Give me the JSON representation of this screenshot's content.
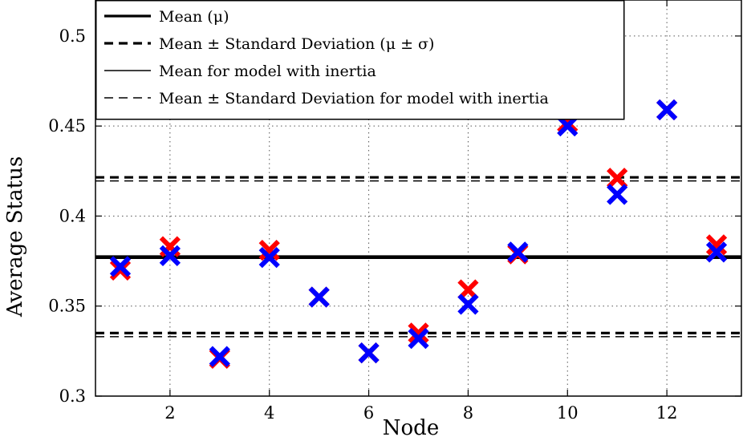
{
  "chart_data": {
    "type": "scatter",
    "xlabel": "Node",
    "ylabel": "Average Status",
    "xlim": [
      0.5,
      13.5
    ],
    "ylim": [
      0.3,
      0.52
    ],
    "xticks": [
      2,
      4,
      6,
      8,
      10,
      12
    ],
    "yticks": [
      0.3,
      0.35,
      0.4,
      0.45,
      0.5
    ],
    "ytick_labels": [
      "0.3",
      "0.35",
      "0.4",
      "0.45",
      "0.5"
    ],
    "grid": true,
    "legend_position": "top-left",
    "legend": [
      {
        "label": "Mean (μ)",
        "style": "thick-solid"
      },
      {
        "label": "Mean ± Standard Deviation (μ ± σ)",
        "style": "thick-dashed"
      },
      {
        "label": "Mean for model with inertia",
        "style": "thin-solid"
      },
      {
        "label": "Mean ± Standard Deviation for model with inertia",
        "style": "thin-dashed"
      }
    ],
    "series": [
      {
        "color": "#ff0000",
        "marker": "x",
        "x": [
          1,
          2,
          3,
          4,
          5,
          6,
          7,
          8,
          9,
          10,
          11,
          12,
          13
        ],
        "y": [
          0.37,
          0.383,
          0.321,
          0.381,
          0.355,
          0.324,
          0.335,
          0.359,
          0.379,
          0.452,
          0.421,
          0.459,
          0.384
        ]
      },
      {
        "color": "#0000ff",
        "marker": "x",
        "x": [
          1,
          2,
          3,
          4,
          5,
          6,
          7,
          8,
          9,
          10,
          11,
          12,
          13
        ],
        "y": [
          0.372,
          0.378,
          0.322,
          0.377,
          0.355,
          0.324,
          0.332,
          0.351,
          0.38,
          0.45,
          0.412,
          0.459,
          0.38
        ]
      }
    ],
    "reference_lines": [
      {
        "y": 0.3775,
        "style": "thick-solid"
      },
      {
        "y": 0.4215,
        "style": "thick-dashed"
      },
      {
        "y": 0.335,
        "style": "thick-dashed"
      },
      {
        "y": 0.3765,
        "style": "thin-solid"
      },
      {
        "y": 0.4195,
        "style": "thin-dashed"
      },
      {
        "y": 0.333,
        "style": "thin-dashed"
      }
    ]
  }
}
